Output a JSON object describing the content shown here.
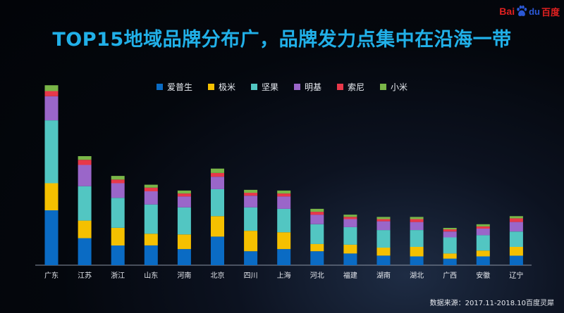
{
  "title": "TOP15地域品牌分布广，品牌发力点集中在沿海一带",
  "logo": {
    "bai": "Bai",
    "du": "du",
    "cn": "百度"
  },
  "source": "数据来源：2017.11-2018.10百度灵犀",
  "chart_data": {
    "type": "bar",
    "stacked": true,
    "legend_position": "top-center",
    "grid": false,
    "title": "TOP15地域品牌分布广，品牌发力点集中在沿海一带",
    "xlabel": "",
    "ylabel": "",
    "ylim": [
      0,
      250
    ],
    "categories": [
      "广东",
      "江苏",
      "浙江",
      "山东",
      "河南",
      "北京",
      "四川",
      "上海",
      "河北",
      "福建",
      "湖南",
      "湖北",
      "广西",
      "安徽",
      "辽宁"
    ],
    "series": [
      {
        "name": "爱普生",
        "color": "#0a6bc4",
        "values": [
          75,
          37,
          27,
          27,
          22,
          39,
          19,
          22,
          19,
          16,
          13,
          12,
          9,
          12,
          13
        ]
      },
      {
        "name": "极米",
        "color": "#f5c000",
        "values": [
          37,
          24,
          24,
          16,
          20,
          28,
          28,
          23,
          10,
          12,
          11,
          13,
          7,
          8,
          12
        ]
      },
      {
        "name": "坚果",
        "color": "#52c6c2",
        "values": [
          86,
          47,
          41,
          40,
          37,
          37,
          32,
          32,
          27,
          24,
          24,
          23,
          22,
          21,
          21
        ]
      },
      {
        "name": "明基",
        "color": "#9a66c9",
        "values": [
          33,
          29,
          20,
          18,
          15,
          17,
          16,
          17,
          13,
          11,
          12,
          11,
          8,
          9,
          13
        ]
      },
      {
        "name": "索尼",
        "color": "#e8384a",
        "values": [
          7,
          7,
          5,
          5,
          4,
          5,
          4,
          4,
          4,
          3,
          3,
          4,
          3,
          3,
          5
        ]
      },
      {
        "name": "小米",
        "color": "#7ab648",
        "values": [
          8,
          5,
          5,
          4,
          4,
          6,
          4,
          4,
          4,
          3,
          3,
          3,
          2,
          3,
          3
        ]
      }
    ]
  }
}
